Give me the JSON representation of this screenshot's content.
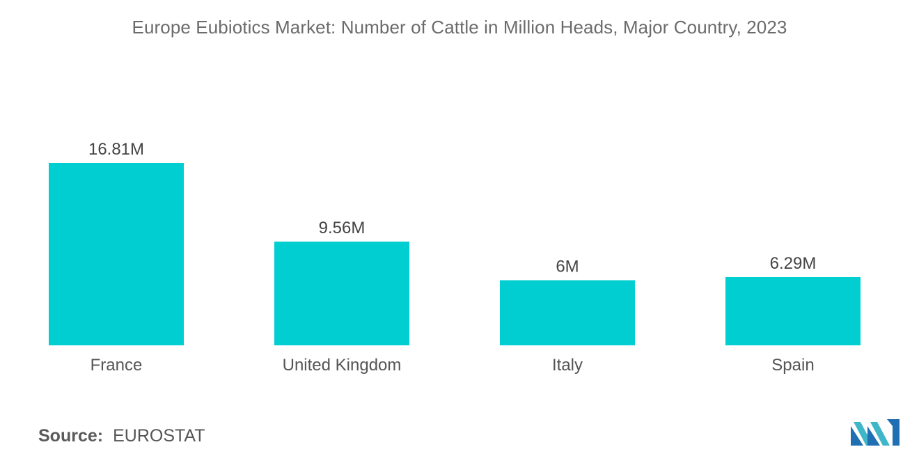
{
  "chart_data": {
    "type": "bar",
    "title": "Europe Eubiotics Market: Number of Cattle in Million Heads, Major Country, 2023",
    "categories": [
      "France",
      "United Kingdom",
      "Italy",
      "Spain"
    ],
    "values": [
      16.81,
      9.56,
      6,
      6.29
    ],
    "value_labels": [
      "16.81M",
      "9.56M",
      "6M",
      "6.29M"
    ],
    "xlabel": "",
    "ylabel": "",
    "ylim": [
      0,
      16.81
    ],
    "grid": false,
    "legend": "none",
    "bar_color": "#00CED1"
  },
  "source": {
    "label": "Source:",
    "value": "EUROSTAT"
  },
  "logo": {
    "icon": "mordor-intelligence-logo-icon",
    "colors": [
      "#1f6fb2",
      "#3fb7c8"
    ]
  }
}
